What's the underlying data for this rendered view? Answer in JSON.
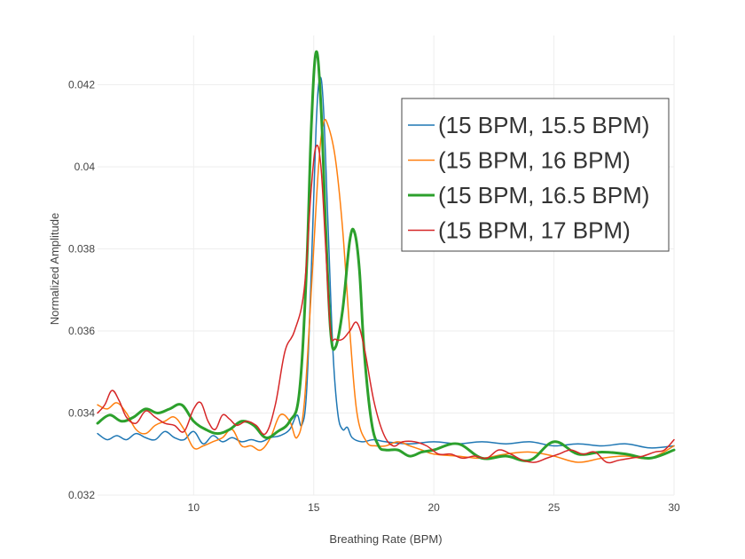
{
  "chart_data": {
    "type": "line",
    "xlabel": "Breathing Rate (BPM)",
    "ylabel": "Normalized Amplitude",
    "xlim": [
      6,
      30
    ],
    "ylim": [
      0.032,
      0.0432
    ],
    "xticks": [
      10,
      15,
      20,
      25,
      30
    ],
    "xtick_labels": [
      "10",
      "15",
      "20",
      "25",
      "30"
    ],
    "yticks": [
      0.032,
      0.034,
      0.036,
      0.038,
      0.04,
      0.042
    ],
    "ytick_labels": [
      "0.032",
      "0.034",
      "0.036",
      "0.038",
      "0.04",
      "0.042"
    ],
    "grid": true,
    "legend_position": "top-right",
    "series": [
      {
        "name": "(15 BPM, 15.5 BPM)",
        "color": "#1f77b4",
        "width": 1.5,
        "points": [
          [
            6,
            0.0335
          ],
          [
            6.4,
            0.03335
          ],
          [
            6.8,
            0.03345
          ],
          [
            7.2,
            0.03335
          ],
          [
            7.6,
            0.0335
          ],
          [
            8,
            0.0334
          ],
          [
            8.4,
            0.03335
          ],
          [
            8.8,
            0.03355
          ],
          [
            9.2,
            0.0334
          ],
          [
            9.6,
            0.03335
          ],
          [
            10,
            0.03355
          ],
          [
            10.4,
            0.03325
          ],
          [
            10.8,
            0.03345
          ],
          [
            11.2,
            0.0333
          ],
          [
            11.6,
            0.0334
          ],
          [
            12,
            0.0333
          ],
          [
            12.4,
            0.03335
          ],
          [
            12.8,
            0.0333
          ],
          [
            13.2,
            0.0334
          ],
          [
            13.6,
            0.03345
          ],
          [
            14,
            0.0336
          ],
          [
            14.3,
            0.03395
          ],
          [
            14.5,
            0.0337
          ],
          [
            14.7,
            0.0345
          ],
          [
            14.9,
            0.0375
          ],
          [
            15.1,
            0.041
          ],
          [
            15.25,
            0.04215
          ],
          [
            15.4,
            0.0415
          ],
          [
            15.6,
            0.0385
          ],
          [
            15.8,
            0.0355
          ],
          [
            16,
            0.034
          ],
          [
            16.2,
            0.0336
          ],
          [
            16.4,
            0.03365
          ],
          [
            16.6,
            0.0334
          ],
          [
            17,
            0.0333
          ],
          [
            17.5,
            0.03335
          ],
          [
            18,
            0.0333
          ],
          [
            19,
            0.03325
          ],
          [
            20,
            0.0333
          ],
          [
            21,
            0.03325
          ],
          [
            22,
            0.0333
          ],
          [
            23,
            0.03325
          ],
          [
            24,
            0.0333
          ],
          [
            25,
            0.0332
          ],
          [
            26,
            0.03325
          ],
          [
            27,
            0.0332
          ],
          [
            28,
            0.03325
          ],
          [
            29,
            0.03315
          ],
          [
            30,
            0.0332
          ]
        ]
      },
      {
        "name": "(15 BPM, 16 BPM)",
        "color": "#ff7f0e",
        "width": 1.5,
        "points": [
          [
            6,
            0.0342
          ],
          [
            6.4,
            0.0341
          ],
          [
            6.8,
            0.03425
          ],
          [
            7.2,
            0.034
          ],
          [
            7.6,
            0.0336
          ],
          [
            8,
            0.0335
          ],
          [
            8.4,
            0.0337
          ],
          [
            8.8,
            0.0338
          ],
          [
            9.2,
            0.0339
          ],
          [
            9.6,
            0.0336
          ],
          [
            10,
            0.03315
          ],
          [
            10.4,
            0.0332
          ],
          [
            10.8,
            0.0333
          ],
          [
            11.2,
            0.0334
          ],
          [
            11.6,
            0.0336
          ],
          [
            12,
            0.0332
          ],
          [
            12.4,
            0.0332
          ],
          [
            12.8,
            0.0331
          ],
          [
            13.2,
            0.0334
          ],
          [
            13.6,
            0.03395
          ],
          [
            14,
            0.0338
          ],
          [
            14.3,
            0.0334
          ],
          [
            14.6,
            0.0342
          ],
          [
            14.9,
            0.037
          ],
          [
            15.2,
            0.04
          ],
          [
            15.4,
            0.04105
          ],
          [
            15.6,
            0.041
          ],
          [
            15.9,
            0.0402
          ],
          [
            16.2,
            0.0385
          ],
          [
            16.5,
            0.036
          ],
          [
            16.8,
            0.034
          ],
          [
            17.2,
            0.0333
          ],
          [
            17.6,
            0.0332
          ],
          [
            18,
            0.0332
          ],
          [
            18.5,
            0.0333
          ],
          [
            19,
            0.0332
          ],
          [
            19.5,
            0.0331
          ],
          [
            20,
            0.033
          ],
          [
            21,
            0.03295
          ],
          [
            22,
            0.0329
          ],
          [
            23,
            0.033
          ],
          [
            24,
            0.03305
          ],
          [
            25,
            0.03295
          ],
          [
            26,
            0.0328
          ],
          [
            27,
            0.0329
          ],
          [
            28,
            0.03295
          ],
          [
            29,
            0.0329
          ],
          [
            30,
            0.0332
          ]
        ]
      },
      {
        "name": "(15 BPM, 16.5 BPM)",
        "color": "#2ca02c",
        "width": 3,
        "points": [
          [
            6,
            0.03375
          ],
          [
            6.5,
            0.03395
          ],
          [
            7,
            0.0338
          ],
          [
            7.5,
            0.0339
          ],
          [
            8,
            0.0341
          ],
          [
            8.5,
            0.034
          ],
          [
            9,
            0.0341
          ],
          [
            9.5,
            0.0342
          ],
          [
            10,
            0.0338
          ],
          [
            10.5,
            0.0336
          ],
          [
            11,
            0.0335
          ],
          [
            11.5,
            0.0336
          ],
          [
            12,
            0.0338
          ],
          [
            12.5,
            0.0337
          ],
          [
            13,
            0.0334
          ],
          [
            13.5,
            0.03355
          ],
          [
            14,
            0.0338
          ],
          [
            14.4,
            0.0345
          ],
          [
            14.7,
            0.0375
          ],
          [
            14.9,
            0.041
          ],
          [
            15.1,
            0.0428
          ],
          [
            15.3,
            0.0415
          ],
          [
            15.5,
            0.0385
          ],
          [
            15.7,
            0.036
          ],
          [
            15.9,
            0.0356
          ],
          [
            16.2,
            0.0365
          ],
          [
            16.5,
            0.0382
          ],
          [
            16.7,
            0.0384
          ],
          [
            16.9,
            0.0375
          ],
          [
            17.1,
            0.0355
          ],
          [
            17.4,
            0.0338
          ],
          [
            17.7,
            0.0332
          ],
          [
            18,
            0.0331
          ],
          [
            18.5,
            0.0331
          ],
          [
            19,
            0.03295
          ],
          [
            19.5,
            0.03305
          ],
          [
            20,
            0.0331
          ],
          [
            21,
            0.03325
          ],
          [
            22,
            0.0329
          ],
          [
            23,
            0.03295
          ],
          [
            24,
            0.03285
          ],
          [
            25,
            0.0333
          ],
          [
            26,
            0.033
          ],
          [
            27,
            0.03305
          ],
          [
            28,
            0.033
          ],
          [
            29,
            0.0329
          ],
          [
            30,
            0.0331
          ]
        ]
      },
      {
        "name": "(15 BPM, 17 BPM)",
        "color": "#d62728",
        "width": 1.5,
        "points": [
          [
            6,
            0.034
          ],
          [
            6.3,
            0.0342
          ],
          [
            6.6,
            0.03455
          ],
          [
            6.9,
            0.0343
          ],
          [
            7.2,
            0.0339
          ],
          [
            7.6,
            0.03375
          ],
          [
            8,
            0.03405
          ],
          [
            8.4,
            0.0339
          ],
          [
            8.8,
            0.03375
          ],
          [
            9.2,
            0.0337
          ],
          [
            9.6,
            0.03355
          ],
          [
            10,
            0.0341
          ],
          [
            10.3,
            0.03425
          ],
          [
            10.6,
            0.0338
          ],
          [
            10.9,
            0.0336
          ],
          [
            11.2,
            0.03395
          ],
          [
            11.5,
            0.03385
          ],
          [
            11.8,
            0.0337
          ],
          [
            12.2,
            0.0338
          ],
          [
            12.6,
            0.0337
          ],
          [
            13,
            0.0335
          ],
          [
            13.4,
            0.0342
          ],
          [
            13.8,
            0.0355
          ],
          [
            14.2,
            0.036
          ],
          [
            14.6,
            0.037
          ],
          [
            14.9,
            0.0395
          ],
          [
            15.1,
            0.0405
          ],
          [
            15.3,
            0.04
          ],
          [
            15.5,
            0.038
          ],
          [
            15.7,
            0.036
          ],
          [
            15.9,
            0.0358
          ],
          [
            16.2,
            0.0358
          ],
          [
            16.5,
            0.036
          ],
          [
            16.8,
            0.0362
          ],
          [
            17.1,
            0.0356
          ],
          [
            17.5,
            0.0343
          ],
          [
            17.9,
            0.0335
          ],
          [
            18.3,
            0.0332
          ],
          [
            18.7,
            0.0333
          ],
          [
            19.2,
            0.0333
          ],
          [
            19.7,
            0.0332
          ],
          [
            20.2,
            0.033
          ],
          [
            20.7,
            0.033
          ],
          [
            21.2,
            0.0329
          ],
          [
            21.7,
            0.03295
          ],
          [
            22.2,
            0.0329
          ],
          [
            22.7,
            0.0331
          ],
          [
            23.2,
            0.033
          ],
          [
            23.7,
            0.03285
          ],
          [
            24.2,
            0.0328
          ],
          [
            24.7,
            0.0329
          ],
          [
            25.2,
            0.033
          ],
          [
            25.7,
            0.0331
          ],
          [
            26.2,
            0.033
          ],
          [
            26.7,
            0.03305
          ],
          [
            27.2,
            0.0328
          ],
          [
            27.7,
            0.03285
          ],
          [
            28.2,
            0.0329
          ],
          [
            28.7,
            0.03295
          ],
          [
            29.2,
            0.03305
          ],
          [
            29.6,
            0.0331
          ],
          [
            30,
            0.03335
          ]
        ]
      }
    ]
  }
}
